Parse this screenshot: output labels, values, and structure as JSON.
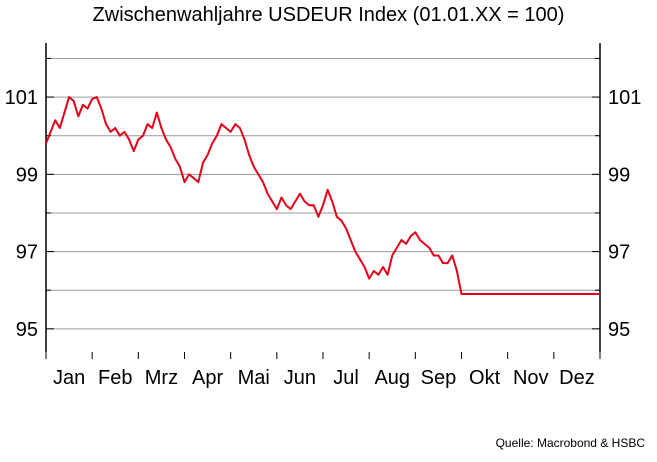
{
  "chart_data": {
    "type": "line",
    "title": "Zwischenwahljahre USDEUR Index (01.01.XX = 100)",
    "xlabel": "",
    "ylabel": "",
    "ylim": [
      94.4,
      102.4
    ],
    "y_ticks": [
      95,
      97,
      99,
      101
    ],
    "grid": true,
    "legend": "none",
    "months": [
      "Jan",
      "Feb",
      "Mrz",
      "Apr",
      "Mai",
      "Jun",
      "Jul",
      "Aug",
      "Sep",
      "Okt",
      "Nov",
      "Dez"
    ],
    "series": [
      {
        "color": "#e3001b",
        "x": [
          0.0,
          0.1,
          0.2,
          0.3,
          0.4,
          0.5,
          0.6,
          0.7,
          0.8,
          0.9,
          1.0,
          1.1,
          1.2,
          1.3,
          1.4,
          1.5,
          1.6,
          1.7,
          1.8,
          1.9,
          2.0,
          2.1,
          2.2,
          2.3,
          2.4,
          2.5,
          2.6,
          2.7,
          2.8,
          2.9,
          3.0,
          3.1,
          3.2,
          3.3,
          3.4,
          3.5,
          3.6,
          3.7,
          3.8,
          3.9,
          4.0,
          4.1,
          4.2,
          4.3,
          4.4,
          4.5,
          4.6,
          4.7,
          4.8,
          4.9,
          5.0,
          5.1,
          5.2,
          5.3,
          5.4,
          5.5,
          5.6,
          5.7,
          5.8,
          5.9,
          6.0,
          6.1,
          6.2,
          6.3,
          6.4,
          6.5,
          6.6,
          6.7,
          6.8,
          6.9,
          7.0,
          7.1,
          7.2,
          7.3,
          7.4,
          7.5,
          7.6,
          7.7,
          7.8,
          7.9,
          8.0,
          8.1,
          8.2,
          8.3,
          8.4,
          8.5,
          8.6,
          8.7,
          8.8,
          8.9,
          9.0,
          9.1,
          9.2,
          9.3,
          9.4,
          9.5,
          9.6,
          9.7,
          9.8,
          9.9,
          10.0,
          10.1,
          10.2,
          10.3,
          10.4,
          10.5,
          10.6,
          10.7,
          10.8,
          10.9,
          11.0,
          11.1,
          11.2,
          11.3,
          11.4,
          11.5,
          11.6,
          11.7,
          11.8,
          11.9,
          12.0
        ],
        "values": [
          99.8,
          100.1,
          100.4,
          100.2,
          100.6,
          101.0,
          100.9,
          100.5,
          100.8,
          100.7,
          100.95,
          101.0,
          100.7,
          100.3,
          100.1,
          100.2,
          100.0,
          100.1,
          99.9,
          99.6,
          99.9,
          100.0,
          100.3,
          100.2,
          100.6,
          100.2,
          99.9,
          99.7,
          99.4,
          99.2,
          98.8,
          99.0,
          98.9,
          98.8,
          99.3,
          99.5,
          99.8,
          100.0,
          100.3,
          100.2,
          100.1,
          100.3,
          100.2,
          99.9,
          99.5,
          99.2,
          99.0,
          98.8,
          98.5,
          98.3,
          98.1,
          98.4,
          98.2,
          98.1,
          98.3,
          98.5,
          98.3,
          98.2,
          98.2,
          97.9,
          98.2,
          98.6,
          98.3,
          97.9,
          97.8,
          97.6,
          97.3,
          97.0,
          96.8,
          96.6,
          96.3,
          96.5,
          96.4,
          96.6,
          96.4,
          96.9,
          97.1,
          97.3,
          97.2,
          97.4,
          97.5,
          97.3,
          97.2,
          97.1,
          96.9,
          96.9,
          96.7,
          96.7,
          96.9,
          96.5,
          95.9,
          95.9,
          95.9,
          95.9,
          95.9,
          95.9,
          95.9,
          95.9,
          95.9,
          95.9,
          95.9,
          95.9,
          95.9,
          95.9,
          95.9,
          95.9,
          95.9,
          95.9,
          95.9,
          95.9,
          95.9,
          95.9,
          95.9,
          95.9,
          95.9,
          95.9,
          95.9,
          95.9,
          95.9,
          95.9,
          95.9
        ]
      }
    ]
  },
  "source": "Quelle: Macrobond & HSBC"
}
